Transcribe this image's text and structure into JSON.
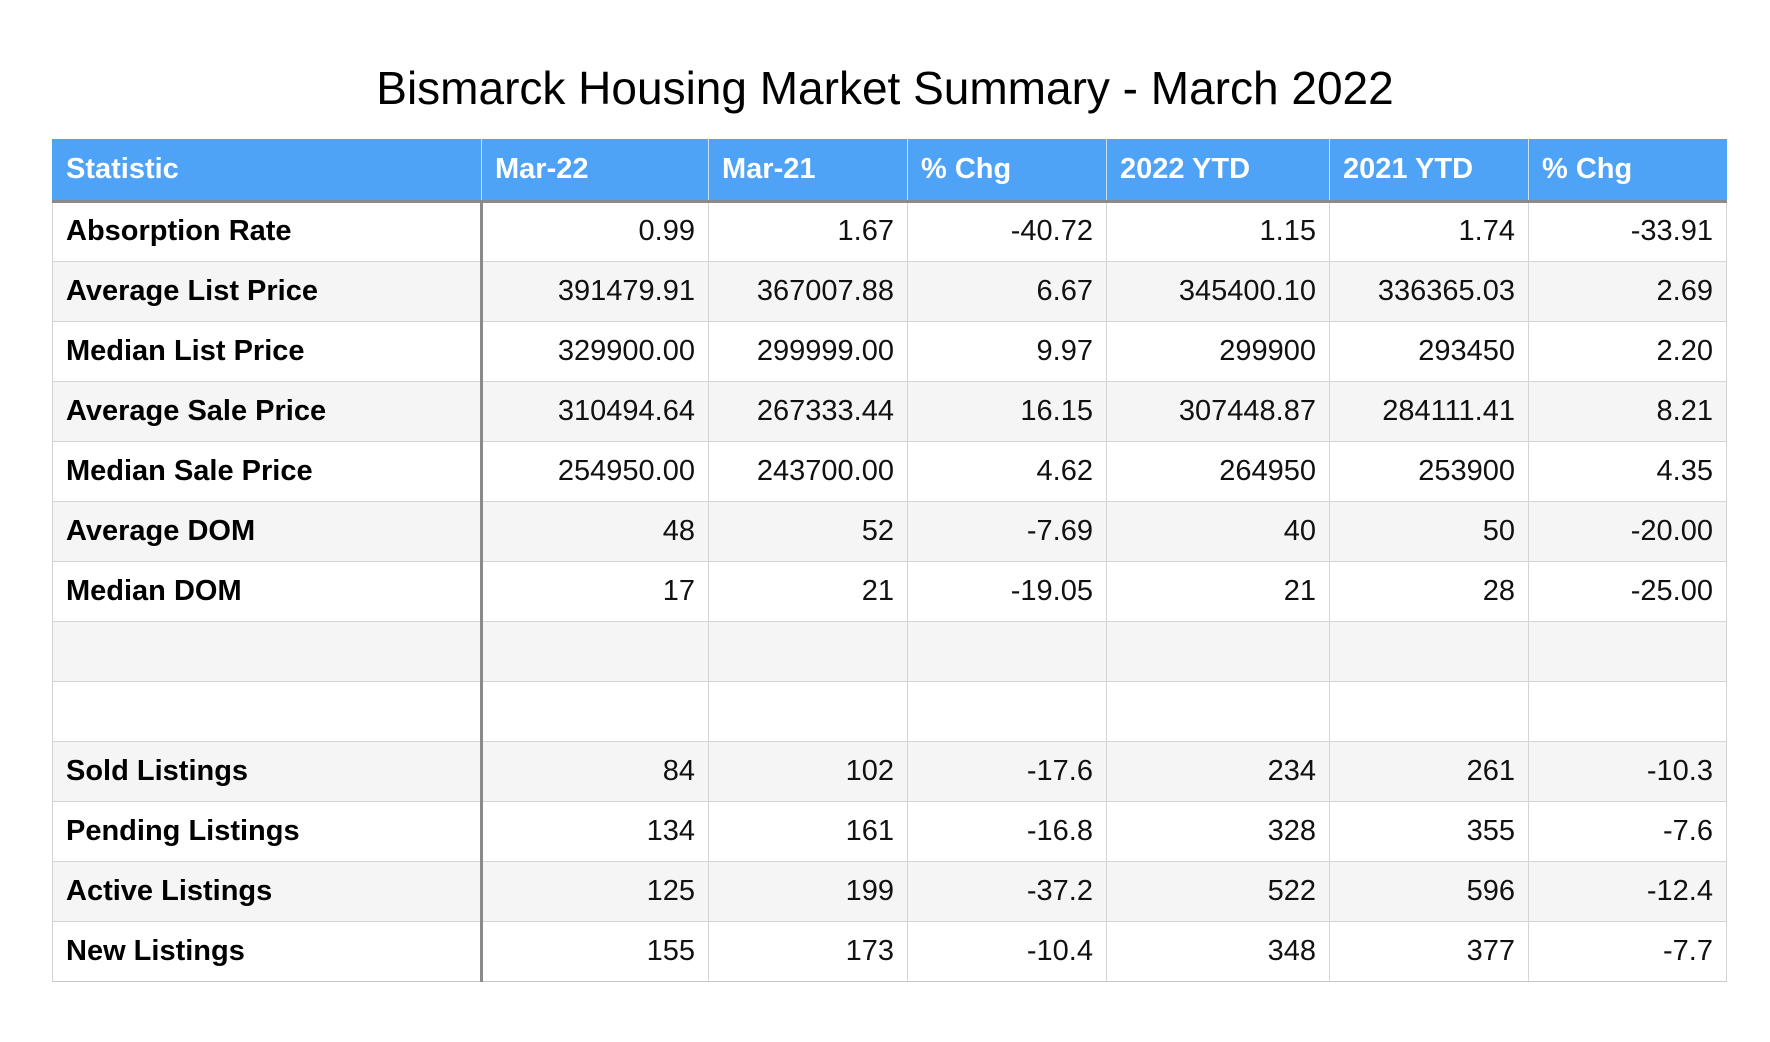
{
  "title": "Bismarck Housing Market Summary - March 2022",
  "colors": {
    "header_bg": "#4ea3f7",
    "header_text": "#ffffff",
    "row_alt": "#f5f5f5",
    "row_base": "#ffffff"
  },
  "chart_data": {
    "type": "table",
    "title": "Bismarck Housing Market Summary - March 2022",
    "columns": [
      "Statistic",
      "Mar-22",
      "Mar-21",
      "% Chg",
      "2022 YTD",
      "2021 YTD",
      "% Chg"
    ],
    "rows": [
      [
        "Absorption Rate",
        "0.99",
        "1.67",
        "-40.72",
        "1.15",
        "1.74",
        "-33.91"
      ],
      [
        "Average List Price",
        "391479.91",
        "367007.88",
        "6.67",
        "345400.10",
        "336365.03",
        "2.69"
      ],
      [
        "Median List Price",
        "329900.00",
        "299999.00",
        "9.97",
        "299900",
        "293450",
        "2.20"
      ],
      [
        "Average Sale Price",
        "310494.64",
        "267333.44",
        "16.15",
        "307448.87",
        "284111.41",
        "8.21"
      ],
      [
        "Median Sale Price",
        "254950.00",
        "243700.00",
        "4.62",
        "264950",
        "253900",
        "4.35"
      ],
      [
        "Average DOM",
        "48",
        "52",
        "-7.69",
        "40",
        "50",
        "-20.00"
      ],
      [
        "Median DOM",
        "17",
        "21",
        "-19.05",
        "21",
        "28",
        "-25.00"
      ],
      [
        "",
        "",
        "",
        "",
        "",
        "",
        ""
      ],
      [
        "",
        "",
        "",
        "",
        "",
        "",
        ""
      ],
      [
        "Sold Listings",
        "84",
        "102",
        "-17.6",
        "234",
        "261",
        "-10.3"
      ],
      [
        "Pending Listings",
        "134",
        "161",
        "-16.8",
        "328",
        "355",
        "-7.6"
      ],
      [
        "Active Listings",
        "125",
        "199",
        "-37.2",
        "522",
        "596",
        "-12.4"
      ],
      [
        "New Listings",
        "155",
        "173",
        "-10.4",
        "348",
        "377",
        "-7.7"
      ]
    ]
  }
}
